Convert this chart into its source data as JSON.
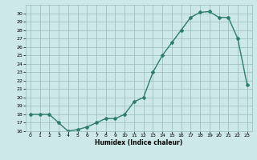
{
  "x": [
    0,
    1,
    2,
    3,
    4,
    5,
    6,
    7,
    8,
    9,
    10,
    11,
    12,
    13,
    14,
    15,
    16,
    17,
    18,
    19,
    20,
    21,
    22,
    23
  ],
  "y": [
    18.0,
    18.0,
    18.0,
    17.0,
    16.0,
    16.2,
    16.5,
    17.0,
    17.5,
    17.5,
    18.0,
    19.5,
    20.0,
    23.0,
    25.0,
    26.5,
    28.0,
    29.5,
    30.1,
    30.2,
    29.5,
    29.5,
    27.0,
    21.5
  ],
  "xlabel": "Humidex (Indice chaleur)",
  "xlim": [
    -0.5,
    23.5
  ],
  "ylim": [
    16,
    31
  ],
  "yticks": [
    16,
    17,
    18,
    19,
    20,
    21,
    22,
    23,
    24,
    25,
    26,
    27,
    28,
    29,
    30
  ],
  "xticks": [
    0,
    1,
    2,
    3,
    4,
    5,
    6,
    7,
    8,
    9,
    10,
    11,
    12,
    13,
    14,
    15,
    16,
    17,
    18,
    19,
    20,
    21,
    22,
    23
  ],
  "line_color": "#2e7d6e",
  "marker": "D",
  "marker_size": 2.0,
  "bg_color": "#cce8e8",
  "grid_color": "#99bbbb",
  "line_width": 1.0
}
